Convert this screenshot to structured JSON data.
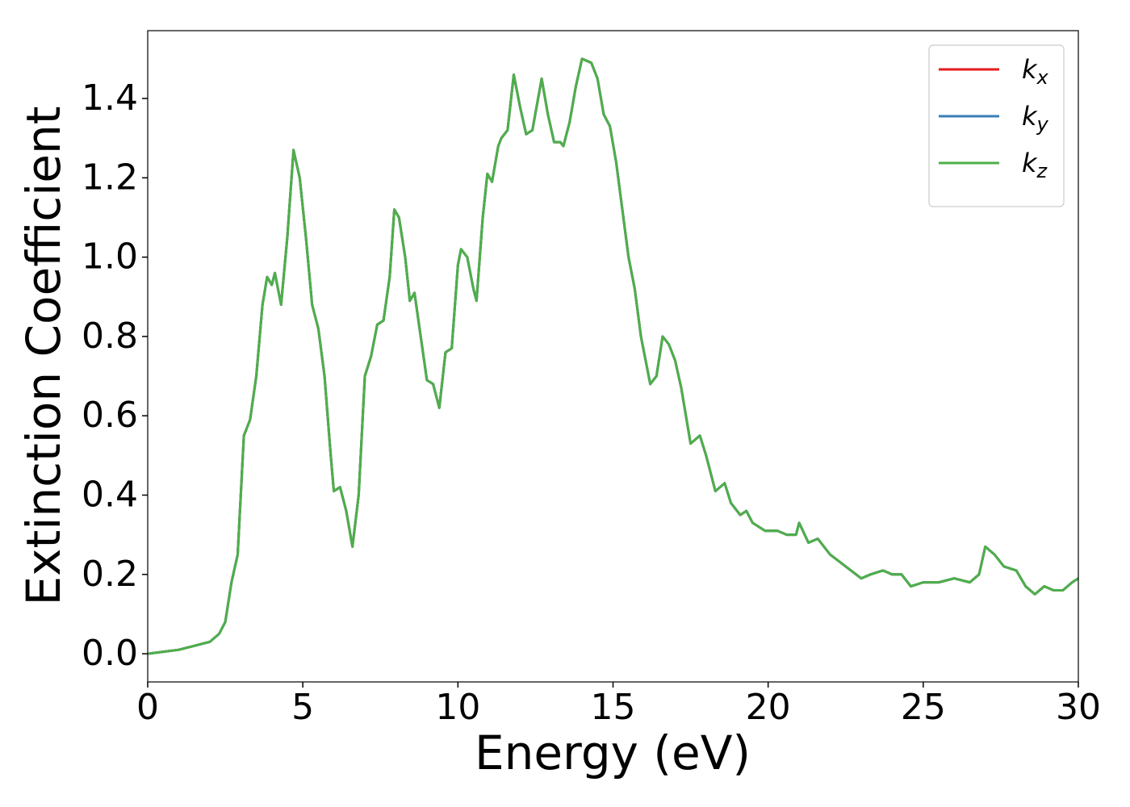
{
  "chart_data": {
    "type": "line",
    "xlabel": "Energy (eV)",
    "ylabel": "Extinction Coefficient",
    "xlim": [
      0,
      30
    ],
    "ylim": [
      -0.071,
      1.571
    ],
    "xticks": [
      0,
      5,
      10,
      15,
      20,
      25,
      30
    ],
    "yticks": [
      {
        "value": 0,
        "label": "0.0"
      },
      0.2,
      0.4,
      0.6,
      0.8,
      {
        "value": 1,
        "label": "1.0"
      },
      1.2,
      1.4
    ],
    "grid": false,
    "legend": "upper right",
    "x": [
      0,
      0.5,
      1,
      1.5,
      2,
      2.3,
      2.5,
      2.7,
      2.9,
      3.1,
      3.3,
      3.5,
      3.7,
      3.85,
      4.0,
      4.1,
      4.3,
      4.5,
      4.7,
      4.9,
      5.1,
      5.3,
      5.5,
      5.7,
      5.9,
      6.0,
      6.2,
      6.4,
      6.6,
      6.8,
      7.0,
      7.2,
      7.4,
      7.6,
      7.8,
      7.95,
      8.1,
      8.3,
      8.45,
      8.6,
      8.8,
      9.0,
      9.2,
      9.4,
      9.6,
      9.8,
      10.0,
      10.1,
      10.3,
      10.5,
      10.6,
      10.8,
      10.95,
      11.1,
      11.3,
      11.4,
      11.6,
      11.8,
      12.0,
      12.2,
      12.4,
      12.7,
      12.9,
      13.1,
      13.3,
      13.4,
      13.6,
      13.8,
      14.0,
      14.3,
      14.5,
      14.7,
      14.9,
      15.1,
      15.3,
      15.5,
      15.7,
      15.9,
      16.2,
      16.4,
      16.6,
      16.8,
      17.0,
      17.2,
      17.5,
      17.8,
      18.0,
      18.3,
      18.6,
      18.8,
      19.1,
      19.3,
      19.5,
      19.9,
      20.3,
      20.6,
      20.9,
      21.0,
      21.3,
      21.6,
      22.0,
      22.5,
      23.0,
      23.3,
      23.7,
      24.0,
      24.3,
      24.6,
      25.0,
      25.5,
      26.0,
      26.5,
      26.8,
      27.0,
      27.3,
      27.6,
      28.0,
      28.3,
      28.6,
      28.9,
      29.2,
      29.5,
      29.8,
      30.0
    ],
    "series": [
      {
        "name": "kx",
        "color": "#e41a1c",
        "values": [
          0,
          0.005,
          0.01,
          0.02,
          0.03,
          0.05,
          0.08,
          0.18,
          0.25,
          0.55,
          0.59,
          0.7,
          0.88,
          0.95,
          0.93,
          0.96,
          0.88,
          1.05,
          1.27,
          1.2,
          1.05,
          0.88,
          0.82,
          0.7,
          0.5,
          0.41,
          0.42,
          0.36,
          0.27,
          0.4,
          0.7,
          0.75,
          0.83,
          0.84,
          0.95,
          1.12,
          1.1,
          1.0,
          0.89,
          0.91,
          0.8,
          0.69,
          0.68,
          0.62,
          0.76,
          0.77,
          0.98,
          1.02,
          1.0,
          0.92,
          0.89,
          1.1,
          1.21,
          1.19,
          1.28,
          1.3,
          1.32,
          1.46,
          1.38,
          1.31,
          1.32,
          1.45,
          1.36,
          1.29,
          1.29,
          1.28,
          1.34,
          1.43,
          1.5,
          1.49,
          1.45,
          1.36,
          1.33,
          1.24,
          1.12,
          1.0,
          0.92,
          0.8,
          0.68,
          0.7,
          0.8,
          0.78,
          0.74,
          0.67,
          0.53,
          0.55,
          0.5,
          0.41,
          0.43,
          0.38,
          0.35,
          0.36,
          0.33,
          0.31,
          0.31,
          0.3,
          0.3,
          0.33,
          0.28,
          0.29,
          0.25,
          0.22,
          0.19,
          0.2,
          0.21,
          0.2,
          0.2,
          0.17,
          0.18,
          0.18,
          0.19,
          0.18,
          0.2,
          0.27,
          0.25,
          0.22,
          0.21,
          0.17,
          0.15,
          0.17,
          0.16,
          0.16,
          0.18,
          0.19
        ]
      },
      {
        "name": "ky",
        "color": "#377eb8",
        "values": [
          0,
          0.005,
          0.01,
          0.02,
          0.03,
          0.05,
          0.08,
          0.18,
          0.25,
          0.55,
          0.59,
          0.7,
          0.88,
          0.95,
          0.93,
          0.96,
          0.88,
          1.05,
          1.27,
          1.2,
          1.05,
          0.88,
          0.82,
          0.7,
          0.5,
          0.41,
          0.42,
          0.36,
          0.27,
          0.4,
          0.7,
          0.75,
          0.83,
          0.84,
          0.95,
          1.12,
          1.1,
          1.0,
          0.89,
          0.91,
          0.8,
          0.69,
          0.68,
          0.62,
          0.76,
          0.77,
          0.98,
          1.02,
          1.0,
          0.92,
          0.89,
          1.1,
          1.21,
          1.19,
          1.28,
          1.3,
          1.32,
          1.46,
          1.38,
          1.31,
          1.32,
          1.45,
          1.36,
          1.29,
          1.29,
          1.28,
          1.34,
          1.43,
          1.5,
          1.49,
          1.45,
          1.36,
          1.33,
          1.24,
          1.12,
          1.0,
          0.92,
          0.8,
          0.68,
          0.7,
          0.8,
          0.78,
          0.74,
          0.67,
          0.53,
          0.55,
          0.5,
          0.41,
          0.43,
          0.38,
          0.35,
          0.36,
          0.33,
          0.31,
          0.31,
          0.3,
          0.3,
          0.33,
          0.28,
          0.29,
          0.25,
          0.22,
          0.19,
          0.2,
          0.21,
          0.2,
          0.2,
          0.17,
          0.18,
          0.18,
          0.19,
          0.18,
          0.2,
          0.27,
          0.25,
          0.22,
          0.21,
          0.17,
          0.15,
          0.17,
          0.16,
          0.16,
          0.18,
          0.19
        ]
      },
      {
        "name": "kz",
        "color": "#4daf4a",
        "values": [
          0,
          0.005,
          0.01,
          0.02,
          0.03,
          0.05,
          0.08,
          0.18,
          0.25,
          0.55,
          0.59,
          0.7,
          0.88,
          0.95,
          0.93,
          0.96,
          0.88,
          1.05,
          1.27,
          1.2,
          1.05,
          0.88,
          0.82,
          0.7,
          0.5,
          0.41,
          0.42,
          0.36,
          0.27,
          0.4,
          0.7,
          0.75,
          0.83,
          0.84,
          0.95,
          1.12,
          1.1,
          1.0,
          0.89,
          0.91,
          0.8,
          0.69,
          0.68,
          0.62,
          0.76,
          0.77,
          0.98,
          1.02,
          1.0,
          0.92,
          0.89,
          1.1,
          1.21,
          1.19,
          1.28,
          1.3,
          1.32,
          1.46,
          1.38,
          1.31,
          1.32,
          1.45,
          1.36,
          1.29,
          1.29,
          1.28,
          1.34,
          1.43,
          1.5,
          1.49,
          1.45,
          1.36,
          1.33,
          1.24,
          1.12,
          1.0,
          0.92,
          0.8,
          0.68,
          0.7,
          0.8,
          0.78,
          0.74,
          0.67,
          0.53,
          0.55,
          0.5,
          0.41,
          0.43,
          0.38,
          0.35,
          0.36,
          0.33,
          0.31,
          0.31,
          0.3,
          0.3,
          0.33,
          0.28,
          0.29,
          0.25,
          0.22,
          0.19,
          0.2,
          0.21,
          0.2,
          0.2,
          0.17,
          0.18,
          0.18,
          0.19,
          0.18,
          0.2,
          0.27,
          0.25,
          0.22,
          0.21,
          0.17,
          0.15,
          0.17,
          0.16,
          0.16,
          0.18,
          0.19
        ]
      }
    ]
  }
}
